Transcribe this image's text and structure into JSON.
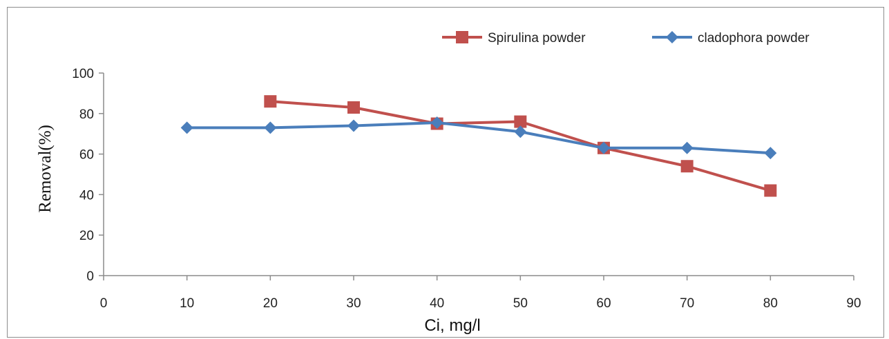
{
  "chart_data": {
    "type": "line",
    "title": "",
    "xlabel": "Ci, mg/l",
    "ylabel": "Removal(%)",
    "xlim": [
      0,
      90
    ],
    "ylim": [
      0,
      100
    ],
    "xticks": [
      0,
      10,
      20,
      30,
      40,
      50,
      60,
      70,
      80,
      90
    ],
    "yticks": [
      0,
      20,
      40,
      60,
      80,
      100
    ],
    "grid": false,
    "legend_position": "top-right",
    "series": [
      {
        "name": "Spirulina powder",
        "color": "#c0504d",
        "marker": "square",
        "x": [
          20,
          30,
          40,
          50,
          60,
          70,
          80
        ],
        "y": [
          86,
          83,
          75,
          76,
          63,
          54,
          42
        ]
      },
      {
        "name": "cladophora powder",
        "color": "#4a7ebb",
        "marker": "diamond",
        "x": [
          10,
          20,
          30,
          40,
          50,
          60,
          70,
          80
        ],
        "y": [
          73,
          73,
          74,
          75.5,
          71,
          63,
          63,
          60.5
        ]
      }
    ]
  }
}
